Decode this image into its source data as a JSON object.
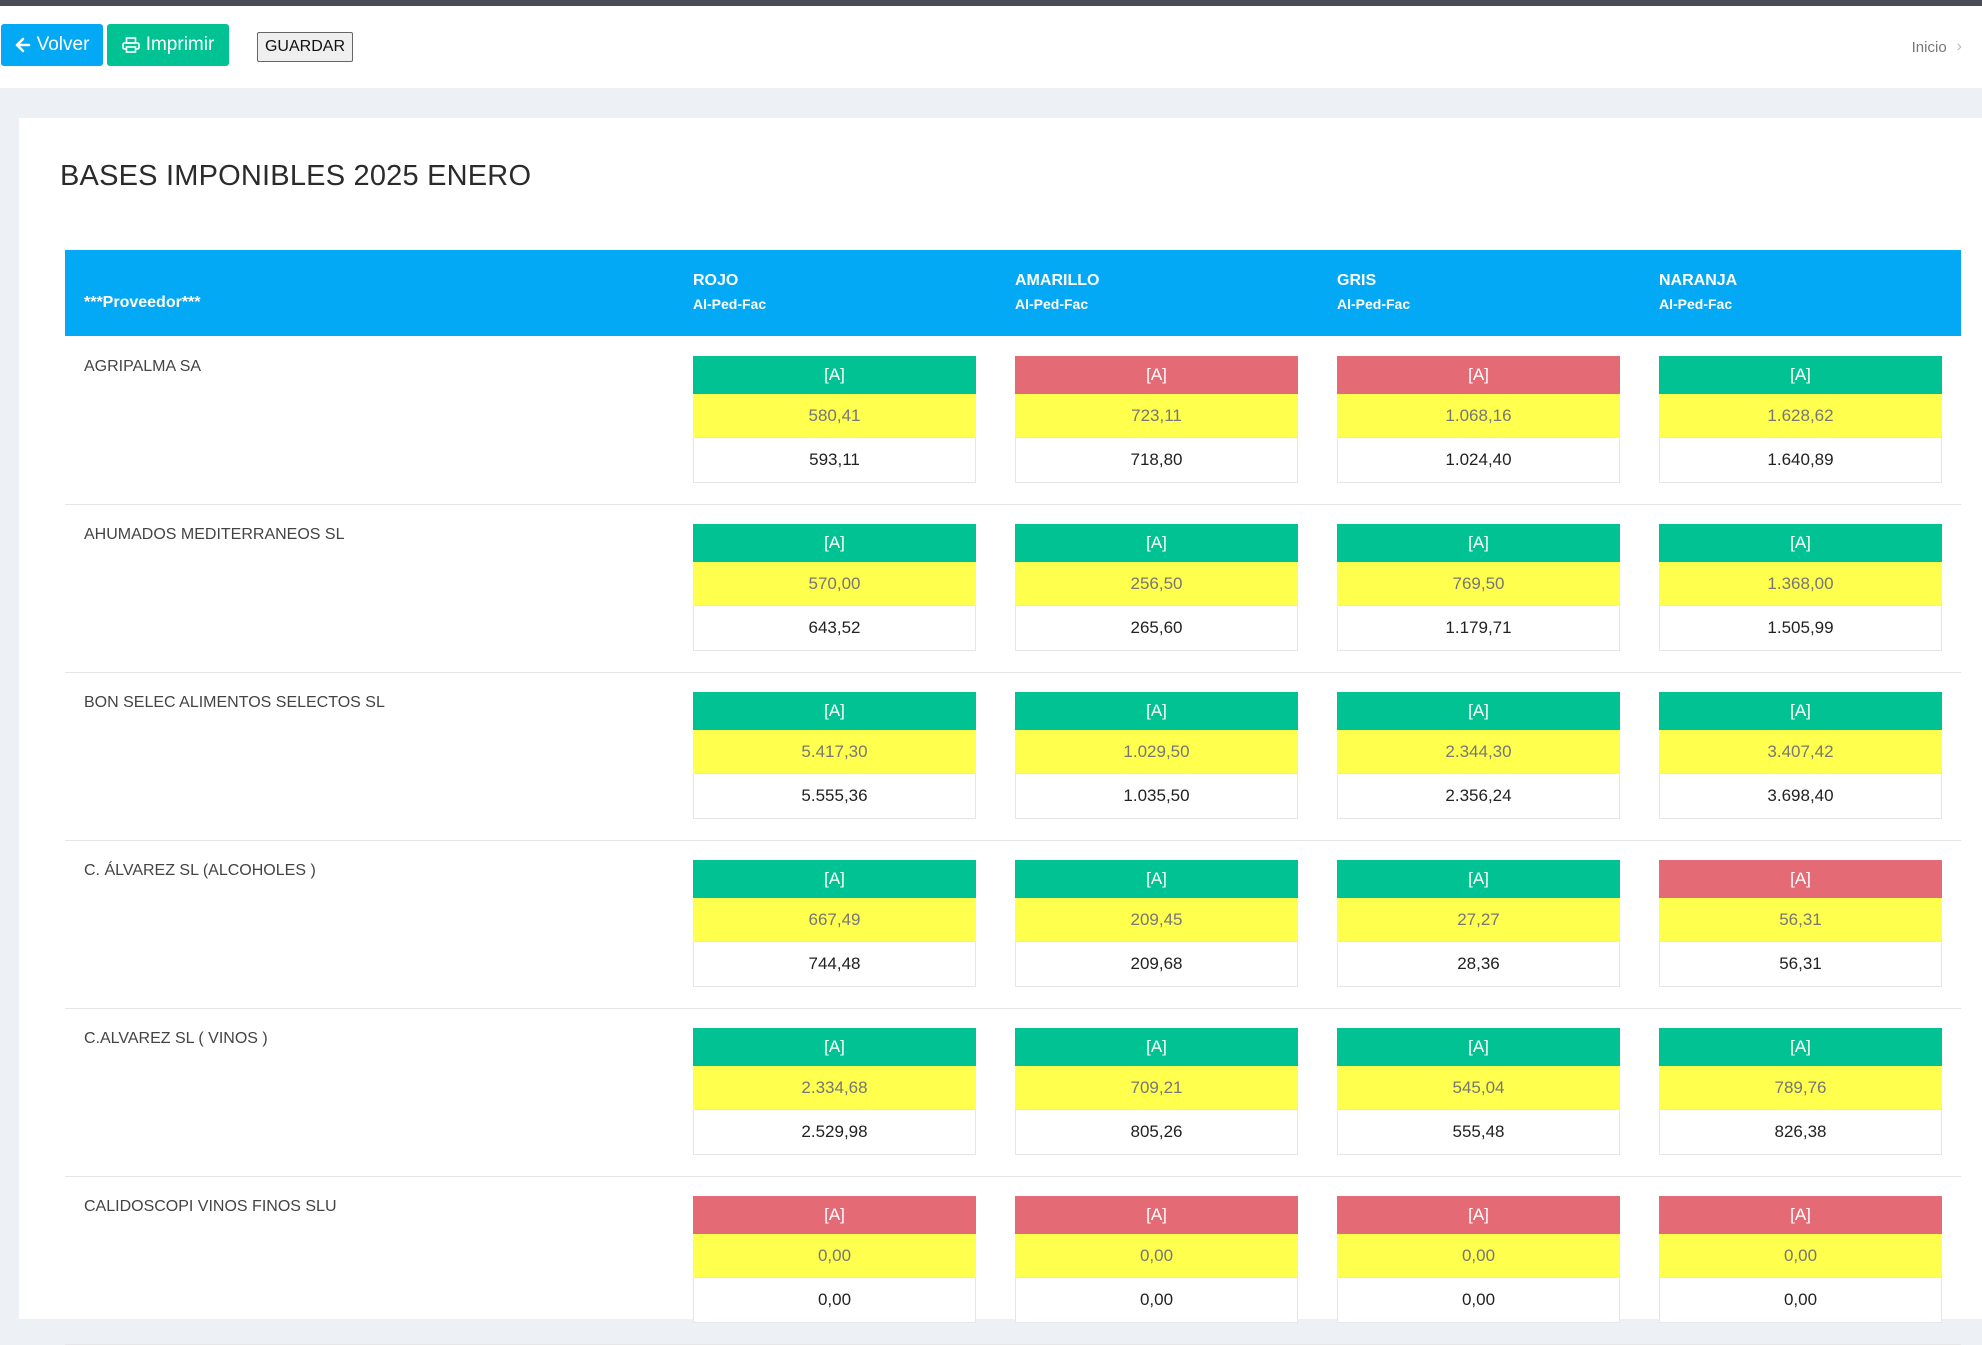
{
  "toolbar": {
    "back_label": "Volver",
    "print_label": "Imprimir",
    "save_label": "GUARDAR"
  },
  "breadcrumb": {
    "home": "Inicio"
  },
  "page": {
    "title": "BASES IMPONIBLES 2025 ENERO"
  },
  "table": {
    "header": {
      "provider": "***Proveedor***",
      "columns": [
        {
          "name": "ROJO",
          "sub": "Al-Ped-Fac"
        },
        {
          "name": "AMARILLO",
          "sub": "Al-Ped-Fac"
        },
        {
          "name": "GRIS",
          "sub": "Al-Ped-Fac"
        },
        {
          "name": "NARANJA",
          "sub": "Al-Ped-Fac"
        }
      ]
    },
    "rows": [
      {
        "name": "AGRIPALMA SA",
        "cells": [
          {
            "badge": "[A]",
            "status": "green",
            "ped": "580,41",
            "fac": "593,11"
          },
          {
            "badge": "[A]",
            "status": "red",
            "ped": "723,11",
            "fac": "718,80"
          },
          {
            "badge": "[A]",
            "status": "red",
            "ped": "1.068,16",
            "fac": "1.024,40"
          },
          {
            "badge": "[A]",
            "status": "green",
            "ped": "1.628,62",
            "fac": "1.640,89"
          }
        ]
      },
      {
        "name": "AHUMADOS MEDITERRANEOS SL",
        "cells": [
          {
            "badge": "[A]",
            "status": "green",
            "ped": "570,00",
            "fac": "643,52"
          },
          {
            "badge": "[A]",
            "status": "green",
            "ped": "256,50",
            "fac": "265,60"
          },
          {
            "badge": "[A]",
            "status": "green",
            "ped": "769,50",
            "fac": "1.179,71"
          },
          {
            "badge": "[A]",
            "status": "green",
            "ped": "1.368,00",
            "fac": "1.505,99"
          }
        ]
      },
      {
        "name": "BON SELEC ALIMENTOS SELECTOS SL",
        "cells": [
          {
            "badge": "[A]",
            "status": "green",
            "ped": "5.417,30",
            "fac": "5.555,36"
          },
          {
            "badge": "[A]",
            "status": "green",
            "ped": "1.029,50",
            "fac": "1.035,50"
          },
          {
            "badge": "[A]",
            "status": "green",
            "ped": "2.344,30",
            "fac": "2.356,24"
          },
          {
            "badge": "[A]",
            "status": "green",
            "ped": "3.407,42",
            "fac": "3.698,40"
          }
        ]
      },
      {
        "name": "C. ÁLVAREZ SL (ALCOHOLES )",
        "cells": [
          {
            "badge": "[A]",
            "status": "green",
            "ped": "667,49",
            "fac": "744,48"
          },
          {
            "badge": "[A]",
            "status": "green",
            "ped": "209,45",
            "fac": "209,68"
          },
          {
            "badge": "[A]",
            "status": "green",
            "ped": "27,27",
            "fac": "28,36"
          },
          {
            "badge": "[A]",
            "status": "red",
            "ped": "56,31",
            "fac": "56,31"
          }
        ]
      },
      {
        "name": "C.ALVAREZ SL ( VINOS )",
        "cells": [
          {
            "badge": "[A]",
            "status": "green",
            "ped": "2.334,68",
            "fac": "2.529,98"
          },
          {
            "badge": "[A]",
            "status": "green",
            "ped": "709,21",
            "fac": "805,26"
          },
          {
            "badge": "[A]",
            "status": "green",
            "ped": "545,04",
            "fac": "555,48"
          },
          {
            "badge": "[A]",
            "status": "green",
            "ped": "789,76",
            "fac": "826,38"
          }
        ]
      },
      {
        "name": "CALIDOSCOPI VINOS FINOS SLU",
        "cells": [
          {
            "badge": "[A]",
            "status": "red",
            "ped": "0,00",
            "fac": "0,00"
          },
          {
            "badge": "[A]",
            "status": "red",
            "ped": "0,00",
            "fac": "0,00"
          },
          {
            "badge": "[A]",
            "status": "red",
            "ped": "0,00",
            "fac": "0,00"
          },
          {
            "badge": "[A]",
            "status": "red",
            "ped": "0,00",
            "fac": "0,00"
          }
        ]
      }
    ]
  },
  "colors": {
    "primary": "#03a9f4",
    "success": "#00c292",
    "danger": "#e46a76",
    "highlight": "#ffff4d"
  }
}
